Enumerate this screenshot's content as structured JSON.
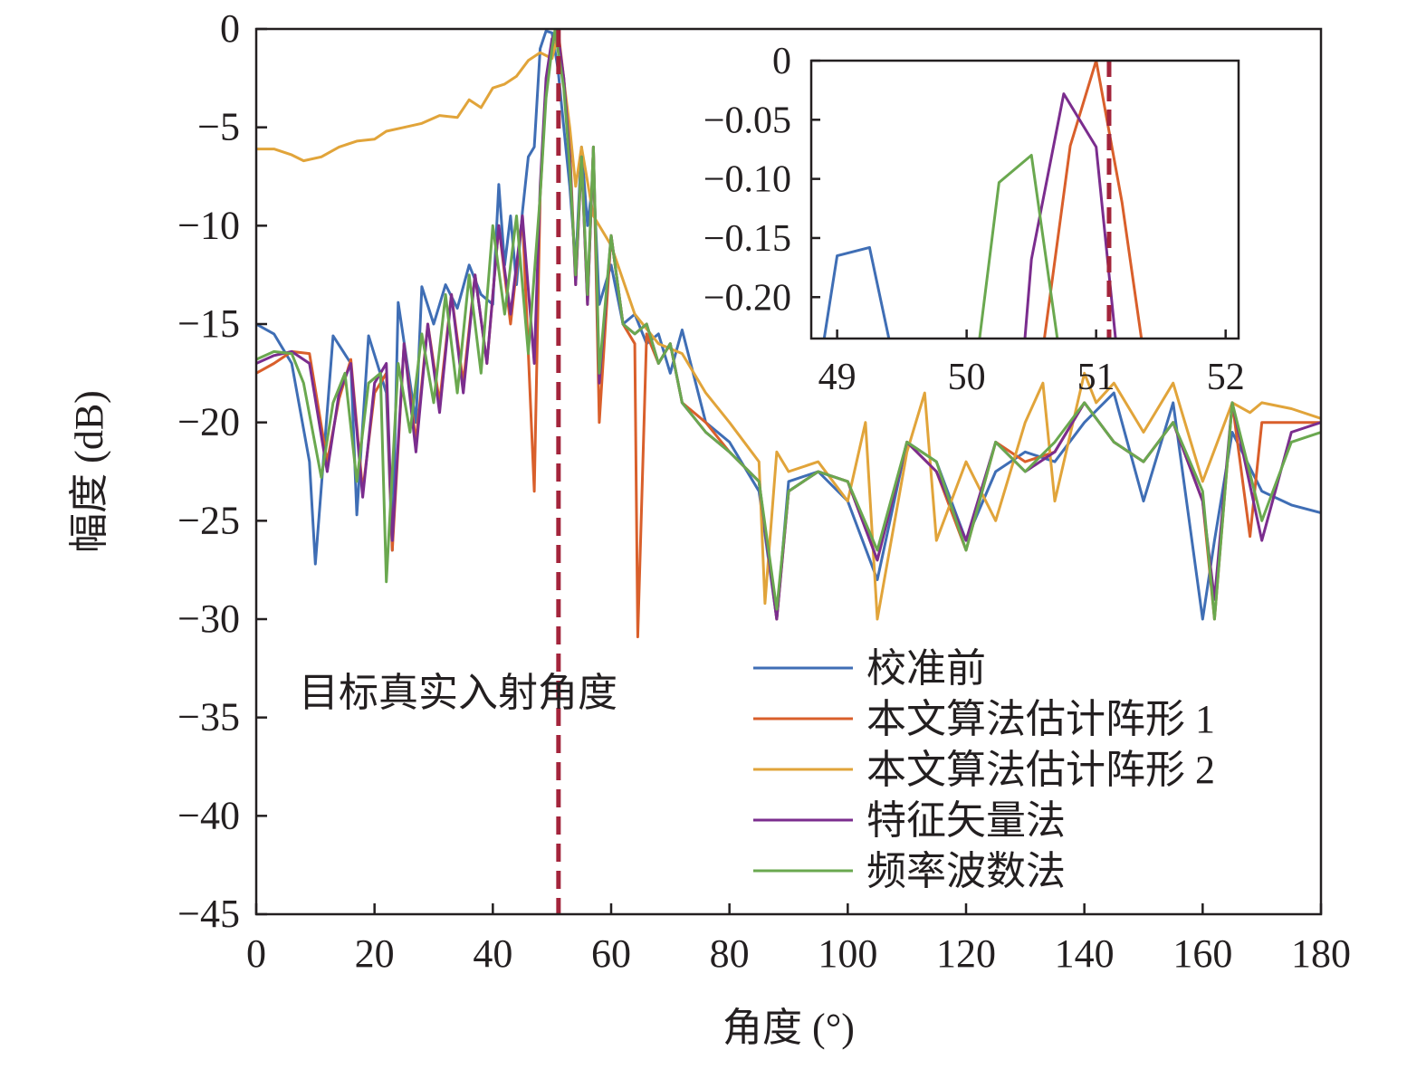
{
  "chart_data": [
    {
      "type": "line",
      "xlabel": "角度 (°)",
      "ylabel": "幅度 (dB)",
      "xlim": [
        0,
        180
      ],
      "ylim": [
        -45,
        0
      ],
      "x_ticks": [
        0,
        20,
        40,
        60,
        80,
        100,
        120,
        140,
        160,
        180
      ],
      "y_ticks": [
        0,
        -5,
        -10,
        -15,
        -20,
        -25,
        -30,
        -35,
        -40,
        -45
      ],
      "x_tick_labels": [
        "0",
        "20",
        "40",
        "60",
        "80",
        "100",
        "120",
        "140",
        "160",
        "180"
      ],
      "y_tick_labels": [
        "0",
        "−5",
        "−10",
        "−15",
        "−20",
        "−25",
        "−30",
        "−35",
        "−40",
        "−45"
      ],
      "grid": false,
      "legend_position": "bottom-right",
      "annotation": {
        "text": "目标真实入射角度",
        "x": 51.1
      },
      "true_angle_line": {
        "x": 51.1,
        "color": "#a3243b",
        "style": "dashed"
      },
      "series": [
        {
          "name": "校准前",
          "color": "#3f6eb5",
          "x": [
            0,
            3,
            6,
            9,
            10,
            13,
            16,
            17,
            19,
            22,
            23,
            24,
            27,
            28,
            30,
            32,
            34,
            36,
            38,
            40,
            41,
            42,
            43,
            44,
            45,
            46,
            47,
            48,
            49,
            50,
            51,
            52,
            53,
            54,
            55,
            56,
            57,
            58,
            60,
            62,
            64,
            66,
            68,
            70,
            72,
            76,
            80,
            85,
            88,
            90,
            95,
            100,
            105,
            110,
            115,
            120,
            125,
            130,
            135,
            140,
            145,
            150,
            155,
            160,
            162,
            165,
            170,
            175,
            180
          ],
          "y": [
            -15.0,
            -15.5,
            -17.0,
            -22.0,
            -27.2,
            -15.6,
            -17.0,
            -24.7,
            -15.6,
            -18.5,
            -26.5,
            -13.9,
            -20.0,
            -13.1,
            -15.0,
            -13.0,
            -14.2,
            -12.0,
            -13.5,
            -14.0,
            -7.9,
            -12.0,
            -9.5,
            -13.0,
            -9.3,
            -6.5,
            -6.0,
            -1.0,
            -0.1,
            -0.2,
            -2.0,
            -5.0,
            -8.0,
            -12.0,
            -6.0,
            -10.0,
            -7.5,
            -14.0,
            -12.0,
            -15.0,
            -14.5,
            -16.0,
            -15.5,
            -17.5,
            -15.3,
            -20.0,
            -21.0,
            -23.5,
            -30.0,
            -23.0,
            -22.5,
            -24.0,
            -28.0,
            -21.0,
            -22.0,
            -26.0,
            -22.5,
            -21.5,
            -22.0,
            -20.0,
            -18.5,
            -24.0,
            -19.0,
            -30.0,
            -26.0,
            -20.5,
            -23.5,
            -24.2,
            -24.6
          ]
        },
        {
          "name": "本文算法估计阵形 1",
          "color": "#d95f2b",
          "x": [
            0,
            3,
            6,
            9,
            12,
            14,
            16,
            18,
            20,
            22,
            23,
            25,
            27,
            29,
            31,
            33,
            35,
            37,
            39,
            41,
            43,
            45,
            47,
            48,
            49,
            50,
            51,
            52,
            53,
            54,
            55,
            56,
            57,
            58,
            60,
            62,
            64,
            64.5,
            66,
            68,
            70,
            72,
            76,
            80,
            85,
            88,
            90,
            95,
            100,
            105,
            110,
            115,
            120,
            125,
            130,
            135,
            140,
            145,
            150,
            155,
            160,
            162,
            165,
            168,
            170,
            175,
            180
          ],
          "y": [
            -17.5,
            -17.0,
            -16.4,
            -16.5,
            -22.0,
            -18.8,
            -16.8,
            -23.5,
            -18.5,
            -17.5,
            -26.5,
            -16.0,
            -21.0,
            -15.0,
            -19.0,
            -13.5,
            -18.0,
            -12.5,
            -17.0,
            -10.0,
            -15.0,
            -9.5,
            -23.5,
            -8.5,
            -3.0,
            -0.8,
            0.0,
            -2.5,
            -6.0,
            -13.0,
            -6.5,
            -14.0,
            -6.0,
            -20.0,
            -10.5,
            -15.0,
            -16.0,
            -30.9,
            -15.5,
            -17.0,
            -16.0,
            -19.0,
            -20.0,
            -21.5,
            -23.0,
            -30.0,
            -23.5,
            -22.5,
            -23.0,
            -27.0,
            -21.0,
            -22.5,
            -26.5,
            -21.0,
            -22.0,
            -21.5,
            -19.0,
            -21.0,
            -22.0,
            -20.0,
            -24.0,
            -30.0,
            -19.0,
            -25.8,
            -20.0,
            -20.0,
            -20.0
          ]
        },
        {
          "name": "本文算法估计阵形 2",
          "color": "#e1a43a",
          "x": [
            0,
            3,
            6,
            8,
            11,
            14,
            17,
            20,
            22,
            25,
            28,
            31,
            34,
            36,
            38,
            40,
            42,
            44,
            46,
            48,
            50,
            51,
            52,
            53,
            54,
            55,
            57,
            60,
            64,
            68,
            72,
            76,
            80,
            85,
            86,
            88,
            90,
            95,
            100,
            103,
            105,
            110,
            113,
            115,
            120,
            125,
            130,
            133,
            135,
            140,
            142,
            145,
            150,
            155,
            160,
            165,
            168,
            170,
            175,
            180
          ],
          "y": [
            -6.1,
            -6.1,
            -6.4,
            -6.7,
            -6.5,
            -6.0,
            -5.7,
            -5.6,
            -5.2,
            -5.0,
            -4.8,
            -4.4,
            -4.5,
            -3.6,
            -4.0,
            -3.0,
            -2.8,
            -2.4,
            -1.6,
            -1.2,
            -1.5,
            -0.3,
            -2.6,
            -5.0,
            -8.0,
            -6.0,
            -9.5,
            -11.0,
            -14.5,
            -16.0,
            -16.5,
            -18.5,
            -20.0,
            -22.0,
            -29.2,
            -21.5,
            -22.5,
            -22.0,
            -24.0,
            -20.0,
            -30.0,
            -21.5,
            -18.5,
            -26.0,
            -22.0,
            -25.0,
            -20.0,
            -18.0,
            -24.0,
            -17.5,
            -19.0,
            -18.0,
            -20.5,
            -18.0,
            -23.0,
            -19.0,
            -19.5,
            -19.0,
            -19.3,
            -19.8
          ]
        },
        {
          "name": "特征矢量法",
          "color": "#7b2d8e",
          "x": [
            0,
            3,
            6,
            9,
            12,
            14,
            16,
            18,
            20,
            22,
            23,
            25,
            27,
            29,
            31,
            33,
            35,
            37,
            39,
            41,
            43,
            45,
            47,
            48,
            49,
            50,
            50.9,
            52,
            53,
            54,
            55,
            56,
            57,
            58,
            60,
            62,
            64,
            66,
            68,
            70,
            72,
            76,
            80,
            85,
            88,
            90,
            95,
            100,
            105,
            110,
            115,
            120,
            125,
            130,
            135,
            140,
            145,
            150,
            155,
            160,
            162,
            165,
            170,
            175,
            180
          ],
          "y": [
            -17.0,
            -16.6,
            -16.4,
            -17.0,
            -22.5,
            -18.5,
            -17.0,
            -23.8,
            -18.0,
            -17.0,
            -26.0,
            -16.0,
            -21.5,
            -15.0,
            -19.5,
            -13.5,
            -18.5,
            -12.5,
            -17.0,
            -10.0,
            -14.5,
            -9.5,
            -17.0,
            -8.0,
            -2.5,
            -0.5,
            -0.03,
            -2.5,
            -6.5,
            -13.0,
            -6.5,
            -14.0,
            -6.0,
            -18.0,
            -10.5,
            -15.0,
            -15.5,
            -15.0,
            -17.0,
            -16.0,
            -19.0,
            -20.5,
            -21.5,
            -23.0,
            -30.0,
            -23.5,
            -22.5,
            -23.0,
            -27.0,
            -21.0,
            -22.5,
            -26.0,
            -21.0,
            -22.5,
            -21.5,
            -19.0,
            -21.0,
            -22.0,
            -20.0,
            -24.0,
            -29.0,
            -19.0,
            -26.0,
            -20.5,
            -20.0
          ]
        },
        {
          "name": "频率波数法",
          "color": "#6aa84f",
          "x": [
            0,
            3,
            6,
            8,
            11,
            13,
            15,
            17,
            19,
            21,
            22,
            24,
            26,
            28,
            30,
            32,
            34,
            36,
            38,
            40,
            42,
            44,
            46,
            48,
            49,
            50,
            50.5,
            52,
            53,
            54,
            55,
            56,
            57,
            58,
            60,
            62,
            64,
            66,
            68,
            70,
            72,
            76,
            80,
            85,
            88,
            90,
            95,
            100,
            105,
            110,
            115,
            120,
            125,
            130,
            135,
            140,
            145,
            150,
            155,
            160,
            162,
            165,
            170,
            175,
            180
          ],
          "y": [
            -16.8,
            -16.4,
            -16.5,
            -18.0,
            -22.8,
            -19.0,
            -17.5,
            -23.0,
            -18.0,
            -17.5,
            -28.1,
            -17.0,
            -20.5,
            -15.5,
            -19.0,
            -13.5,
            -18.5,
            -12.5,
            -17.5,
            -10.0,
            -14.5,
            -9.5,
            -16.5,
            -8.5,
            -3.5,
            -1.0,
            -0.08,
            -3.0,
            -7.0,
            -12.5,
            -6.5,
            -13.5,
            -6.0,
            -17.5,
            -10.5,
            -15.0,
            -15.5,
            -15.0,
            -17.0,
            -16.0,
            -19.0,
            -20.5,
            -21.5,
            -23.0,
            -29.5,
            -23.5,
            -22.5,
            -23.0,
            -26.5,
            -21.0,
            -22.0,
            -26.5,
            -21.0,
            -22.5,
            -21.0,
            -19.0,
            -21.0,
            -22.0,
            -20.0,
            -23.5,
            -30.0,
            -19.0,
            -25.0,
            -21.0,
            -20.5
          ]
        }
      ]
    },
    {
      "type": "line",
      "title": "",
      "xlim": [
        48.8,
        52.1
      ],
      "ylim": [
        -0.235,
        0.0
      ],
      "x_ticks": [
        49,
        50,
        51,
        52
      ],
      "y_ticks": [
        0,
        -0.05,
        -0.1,
        -0.15,
        -0.2
      ],
      "x_tick_labels": [
        "49",
        "50",
        "51",
        "52"
      ],
      "y_tick_labels": [
        "0",
        "−0.05",
        "−0.10",
        "−0.15",
        "−0.20"
      ],
      "true_angle_line": {
        "x": 51.1,
        "color": "#a3243b",
        "style": "dashed"
      },
      "series": [
        {
          "color": "#3f6eb5",
          "x": [
            48.9,
            49.0,
            49.25,
            49.4
          ],
          "y": [
            -0.235,
            -0.165,
            -0.158,
            -0.235
          ]
        },
        {
          "color": "#d95f2b",
          "x": [
            50.6,
            50.8,
            51.0,
            51.2,
            51.35
          ],
          "y": [
            -0.235,
            -0.072,
            0.0,
            -0.12,
            -0.235
          ]
        },
        {
          "color": "#7b2d8e",
          "x": [
            50.45,
            50.5,
            50.75,
            51.0,
            51.15
          ],
          "y": [
            -0.235,
            -0.168,
            -0.028,
            -0.073,
            -0.235
          ]
        },
        {
          "color": "#6aa84f",
          "x": [
            50.1,
            50.25,
            50.5,
            50.7
          ],
          "y": [
            -0.235,
            -0.103,
            -0.08,
            -0.235
          ]
        }
      ]
    }
  ]
}
